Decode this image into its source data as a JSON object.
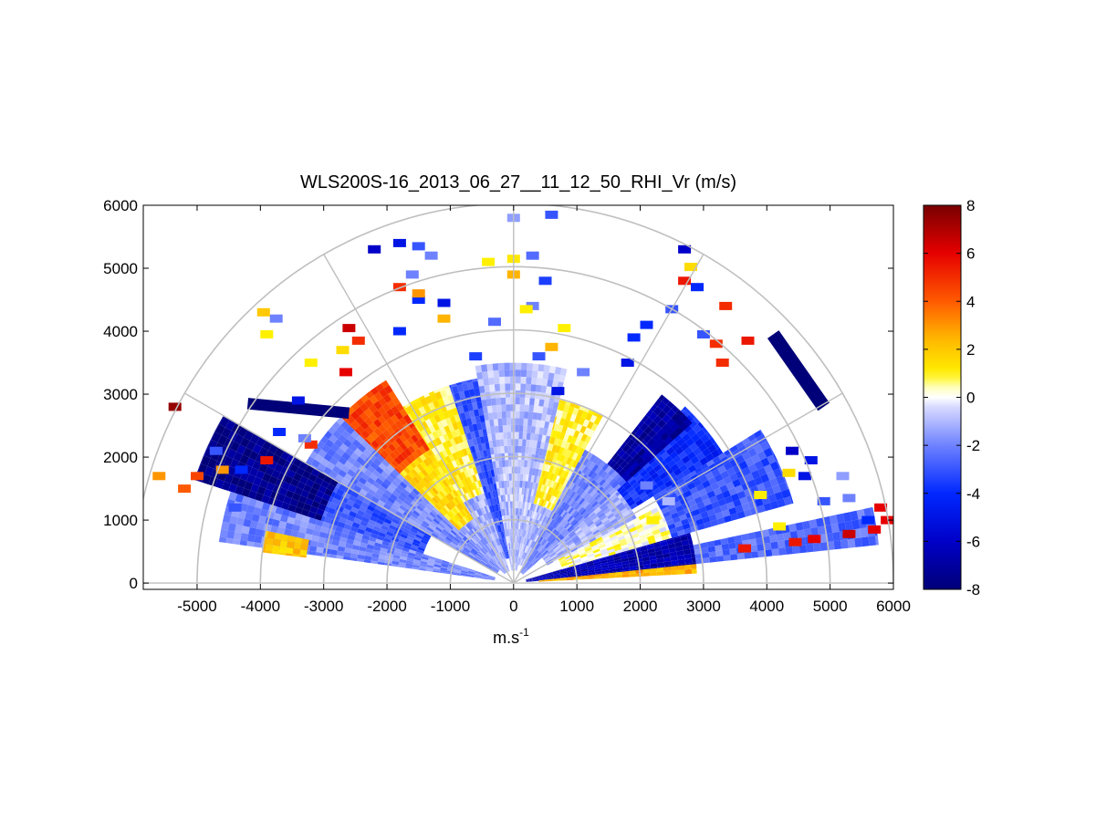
{
  "chart_data": {
    "type": "heatmap",
    "subtype": "polar-rhi-scan",
    "title": "WLS200S-16_2013_06_27__11_12_50_RHI_Vr (m/s)",
    "xlabel": "m.s",
    "xlabel_superscript": "-1",
    "ylabel": "",
    "xlim": [
      -5850,
      6000
    ],
    "ylim": [
      -100,
      6000
    ],
    "x_ticks": [
      -5000,
      -4000,
      -3000,
      -2000,
      -1000,
      0,
      1000,
      2000,
      3000,
      4000,
      5000,
      6000
    ],
    "y_ticks": [
      0,
      1000,
      2000,
      3000,
      4000,
      5000,
      6000
    ],
    "x_tick_labels": [
      "-5000",
      "-4000",
      "-3000",
      "-2000",
      "-1000",
      "0",
      "1000",
      "2000",
      "3000",
      "4000",
      "5000",
      "6000"
    ],
    "y_tick_labels": [
      "0",
      "1000",
      "2000",
      "3000",
      "4000",
      "5000",
      "6000"
    ],
    "polar_grid": {
      "range_rings_m": [
        1000,
        2000,
        3000,
        4000,
        5000,
        6000
      ],
      "spokes_deg": [
        0,
        30,
        60,
        90,
        120,
        150,
        180
      ],
      "grid": true
    },
    "colorbar": {
      "range": [
        -8,
        8
      ],
      "ticks": [
        -8,
        -6,
        -4,
        -2,
        0,
        2,
        4,
        6,
        8
      ],
      "tick_labels": [
        "-8",
        "-6",
        "-4",
        "-2",
        "0",
        "2",
        "4",
        "6",
        "8"
      ],
      "colormap": "blue-white-red",
      "placement": "right"
    },
    "sectors": [
      {
        "az_from": 5,
        "az_to": 16,
        "r_from": 200,
        "r_to": 2900,
        "v": -6.5
      },
      {
        "az_from": 3,
        "az_to": 6,
        "r_from": 400,
        "r_to": 2900,
        "v": 2.5
      },
      {
        "az_from": 6,
        "az_to": 12,
        "r_from": 2900,
        "r_to": 5800,
        "v": -2.5
      },
      {
        "az_from": 16,
        "az_to": 28,
        "r_from": 800,
        "r_to": 2600,
        "v": 0.3
      },
      {
        "az_from": 16,
        "az_to": 32,
        "r_from": 2600,
        "r_to": 4600,
        "v": -3.0
      },
      {
        "az_from": 28,
        "az_to": 42,
        "r_from": 600,
        "r_to": 2200,
        "v": -1.2
      },
      {
        "az_from": 32,
        "az_to": 46,
        "r_from": 2200,
        "r_to": 3900,
        "v": -4.0
      },
      {
        "az_from": 42,
        "az_to": 52,
        "r_from": 2400,
        "r_to": 3800,
        "v": -7.0
      },
      {
        "az_from": 42,
        "az_to": 62,
        "r_from": 200,
        "r_to": 2400,
        "v": -2.0
      },
      {
        "az_from": 62,
        "az_to": 76,
        "r_from": 1300,
        "r_to": 3000,
        "v": 1.0
      },
      {
        "az_from": 62,
        "az_to": 76,
        "r_from": 300,
        "r_to": 1300,
        "v": -1.0
      },
      {
        "az_from": 76,
        "az_to": 100,
        "r_from": 200,
        "r_to": 3500,
        "v": -1.0
      },
      {
        "az_from": 100,
        "az_to": 108,
        "r_from": 400,
        "r_to": 3300,
        "v": -3.0
      },
      {
        "az_from": 108,
        "az_to": 122,
        "r_from": 1500,
        "r_to": 3300,
        "v": 1.0
      },
      {
        "az_from": 108,
        "az_to": 122,
        "r_from": 200,
        "r_to": 1500,
        "v": -1.2
      },
      {
        "az_from": 122,
        "az_to": 136,
        "r_from": 2500,
        "r_to": 3800,
        "v": 4.5
      },
      {
        "az_from": 122,
        "az_to": 136,
        "r_from": 1200,
        "r_to": 2500,
        "v": 1.5
      },
      {
        "az_from": 122,
        "az_to": 136,
        "r_from": 200,
        "r_to": 1200,
        "v": -1.5
      },
      {
        "az_from": 136,
        "az_to": 150,
        "r_from": 300,
        "r_to": 3800,
        "v": -2.0
      },
      {
        "az_from": 150,
        "az_to": 162,
        "r_from": 3200,
        "r_to": 5300,
        "v": -7.5
      },
      {
        "az_from": 150,
        "az_to": 162,
        "r_from": 1500,
        "r_to": 3200,
        "v": -3.0
      },
      {
        "az_from": 162,
        "az_to": 172,
        "r_from": 300,
        "r_to": 4700,
        "v": -2.0
      },
      {
        "az_from": 168,
        "az_to": 173,
        "r_from": 3300,
        "r_to": 4000,
        "v": 2.0
      }
    ],
    "scatter_cells": [
      {
        "x": 3700,
        "y": 3850,
        "v": 5.5
      },
      {
        "x": 3350,
        "y": 4400,
        "v": 5.0
      },
      {
        "x": 3200,
        "y": 3800,
        "v": 5.0
      },
      {
        "x": 3300,
        "y": 3500,
        "v": 5.0
      },
      {
        "x": 2800,
        "y": 5020,
        "v": 1.5
      },
      {
        "x": 2700,
        "y": 4800,
        "v": 5.5
      },
      {
        "x": 5300,
        "y": 780,
        "v": 6.5
      },
      {
        "x": 5700,
        "y": 850,
        "v": 6.0
      },
      {
        "x": 5900,
        "y": 1000,
        "v": 6.0
      },
      {
        "x": 5800,
        "y": 1200,
        "v": 6.0
      },
      {
        "x": 4750,
        "y": 700,
        "v": 6.0
      },
      {
        "x": 4450,
        "y": 650,
        "v": 5.5
      },
      {
        "x": 3650,
        "y": 550,
        "v": 5.5
      },
      {
        "x": 4200,
        "y": 900,
        "v": 1.0
      },
      {
        "x": 4600,
        "y": 1700,
        "v": -5.0
      },
      {
        "x": 4900,
        "y": 1300,
        "v": -3.0
      },
      {
        "x": 5300,
        "y": 1350,
        "v": -2.0
      },
      {
        "x": 5600,
        "y": 1000,
        "v": -4.0
      },
      {
        "x": 4400,
        "y": 2100,
        "v": -6.0
      },
      {
        "x": 4700,
        "y": 1950,
        "v": -5.0
      },
      {
        "x": 5200,
        "y": 1700,
        "v": -1.5
      },
      {
        "x": 4350,
        "y": 1750,
        "v": 1.5
      },
      {
        "x": 3900,
        "y": 1400,
        "v": 1.0
      },
      {
        "x": 2200,
        "y": 1000,
        "v": 1.0
      },
      {
        "x": 2100,
        "y": 1550,
        "v": -2.0
      },
      {
        "x": 2450,
        "y": 1300,
        "v": -1.0
      },
      {
        "x": 2700,
        "y": 5300,
        "v": -6.0
      },
      {
        "x": 2900,
        "y": 4700,
        "v": -4.0
      },
      {
        "x": 2100,
        "y": 4100,
        "v": -4.0
      },
      {
        "x": 2500,
        "y": 4350,
        "v": -3.0
      },
      {
        "x": 1800,
        "y": 3500,
        "v": -5.0
      },
      {
        "x": 1900,
        "y": 3900,
        "v": -4.0
      },
      {
        "x": 3000,
        "y": 3950,
        "v": -3.0
      },
      {
        "x": 1100,
        "y": 3350,
        "v": -2.0
      },
      {
        "x": 700,
        "y": 3050,
        "v": -5.0
      },
      {
        "x": 400,
        "y": 3600,
        "v": -3.0
      },
      {
        "x": 300,
        "y": 4400,
        "v": -2.0
      },
      {
        "x": 500,
        "y": 4800,
        "v": -3.5
      },
      {
        "x": 300,
        "y": 5200,
        "v": -2.5
      },
      {
        "x": 600,
        "y": 5850,
        "v": -3.0
      },
      {
        "x": 0,
        "y": 5800,
        "v": -1.5
      },
      {
        "x": 0,
        "y": 5150,
        "v": 1.2
      },
      {
        "x": 0,
        "y": 4900,
        "v": 2.5
      },
      {
        "x": 200,
        "y": 4350,
        "v": 1.0
      },
      {
        "x": 800,
        "y": 4050,
        "v": 1.0
      },
      {
        "x": 600,
        "y": 3750,
        "v": 2.5
      },
      {
        "x": -300,
        "y": 4150,
        "v": -2.5
      },
      {
        "x": -400,
        "y": 5100,
        "v": 1.0
      },
      {
        "x": -600,
        "y": 3600,
        "v": -3.5
      },
      {
        "x": -1500,
        "y": 5350,
        "v": -3.0
      },
      {
        "x": -1600,
        "y": 4900,
        "v": -2.0
      },
      {
        "x": -1500,
        "y": 4500,
        "v": -4.0
      },
      {
        "x": -1100,
        "y": 4450,
        "v": -5.0
      },
      {
        "x": -1300,
        "y": 5200,
        "v": -2.0
      },
      {
        "x": -1800,
        "y": 5400,
        "v": -5.0
      },
      {
        "x": -2200,
        "y": 5300,
        "v": -6.0
      },
      {
        "x": -1100,
        "y": 4200,
        "v": 2.5
      },
      {
        "x": -1500,
        "y": 4600,
        "v": 3.0
      },
      {
        "x": -1800,
        "y": 4700,
        "v": 5.0
      },
      {
        "x": -2600,
        "y": 4050,
        "v": 6.5
      },
      {
        "x": -2450,
        "y": 3850,
        "v": 5.0
      },
      {
        "x": -2700,
        "y": 3700,
        "v": 1.5
      },
      {
        "x": -2650,
        "y": 3350,
        "v": 6.0
      },
      {
        "x": -1800,
        "y": 4000,
        "v": -4.0
      },
      {
        "x": -3200,
        "y": 3500,
        "v": 1.0
      },
      {
        "x": -3200,
        "y": 2200,
        "v": 5.0
      },
      {
        "x": -3750,
        "y": 4200,
        "v": -2.0
      },
      {
        "x": -3950,
        "y": 4300,
        "v": 2.0
      },
      {
        "x": -3900,
        "y": 3950,
        "v": 1.0
      },
      {
        "x": -5000,
        "y": 1700,
        "v": 4.5
      },
      {
        "x": -5200,
        "y": 1500,
        "v": 4.0
      },
      {
        "x": -5350,
        "y": 2800,
        "v": 7.5
      },
      {
        "x": -4600,
        "y": 1800,
        "v": 3.0
      },
      {
        "x": -4300,
        "y": 1800,
        "v": -4.0
      },
      {
        "x": -3900,
        "y": 1950,
        "v": 5.5
      },
      {
        "x": -4700,
        "y": 2100,
        "v": -3.0
      },
      {
        "x": -5600,
        "y": 1700,
        "v": 3.0
      },
      {
        "x": -3400,
        "y": 2900,
        "v": -5.0
      },
      {
        "x": -3300,
        "y": 2300,
        "v": -2.0
      },
      {
        "x": -3700,
        "y": 2400,
        "v": -4.0
      },
      {
        "x": -4400,
        "y": 1200,
        "v": -3.0
      }
    ],
    "strokes": [
      {
        "from": [
          4100,
          3950
        ],
        "to": [
          4900,
          2800
        ],
        "v": -8.0,
        "w": 2200
      },
      {
        "from": [
          -4200,
          2850
        ],
        "to": [
          -2600,
          2700
        ],
        "v": -8.0,
        "w": 1800
      }
    ]
  }
}
